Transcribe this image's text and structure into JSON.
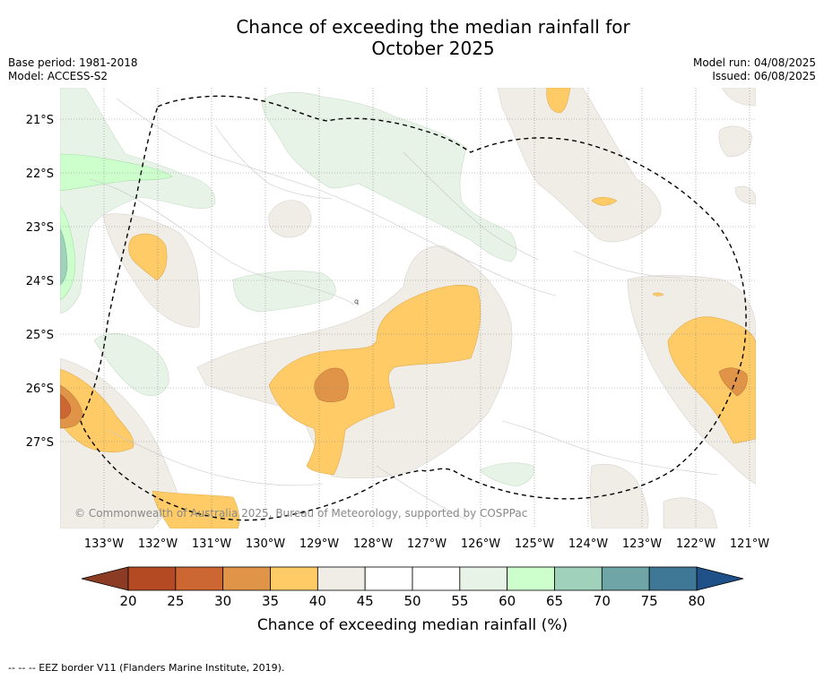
{
  "title_line1": "Chance of exceeding the median rainfall for",
  "title_line2": "October 2025",
  "base_period": "Base period: 1981-2018",
  "model": "Model: ACCESS-S2",
  "model_run": "Model run: 04/08/2025",
  "issued": "Issued: 06/08/2025",
  "copyright": "© Commonwealth of Australia 2025, Bureau of Meteorology, supported by COSPPac",
  "footer": "--  --  -- EEZ border V11 (Flanders Marine Institute, 2019).",
  "map": {
    "lat_labels": [
      "21°S",
      "22°S",
      "23°S",
      "24°S",
      "25°S",
      "26°S",
      "27°S"
    ],
    "lon_labels": [
      "133°W",
      "132°W",
      "131°W",
      "130°W",
      "129°W",
      "128°W",
      "127°W",
      "126°W",
      "125°W",
      "124°W",
      "123°W",
      "122°W",
      "121°W"
    ],
    "colors": {
      "c20_25": "#b34a24",
      "c25_30": "#cc6633",
      "c30_35": "#df9448",
      "c35_40": "#ffcb66",
      "c40_45": "#f0ece6",
      "c45_55": "#ffffff",
      "c55_60": "#e7f3e7",
      "c60_65": "#ccffcc",
      "c65_70": "#9fd1bb",
      "c70_75": "#70a5a7",
      "c75_80": "#3f7797"
    }
  },
  "colorbar": {
    "ticks": [
      "20",
      "25",
      "30",
      "35",
      "40",
      "45",
      "50",
      "55",
      "60",
      "65",
      "70",
      "75",
      "80"
    ],
    "label": "Chance of exceeding median rainfall (%)",
    "colors": [
      "#b34a24",
      "#cc6633",
      "#df9448",
      "#ffcb66",
      "#f0ece6",
      "#ffffff",
      "#ffffff",
      "#e7f3e7",
      "#ccffcc",
      "#9fd1bb",
      "#70a5a7",
      "#3f7797"
    ],
    "low_color": "#8c3c24",
    "high_color": "#1f5088"
  }
}
